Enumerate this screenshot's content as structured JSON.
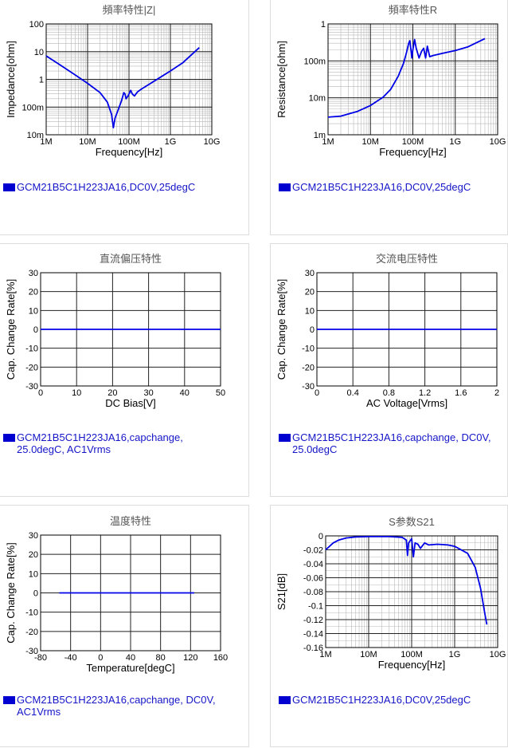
{
  "legend_color": "#0000d0",
  "line_color": "#0000e6",
  "chart_data": [
    {
      "id": "impedance",
      "type": "line",
      "title": "頻率特性|Z|",
      "xlabel": "Frequency[Hz]",
      "ylabel": "Impedance[ohm]",
      "xscale": "log",
      "yscale": "log",
      "xlim": [
        1000000,
        10000000000
      ],
      "ylim": [
        0.01,
        100
      ],
      "xticks": [
        1000000,
        10000000,
        100000000,
        1000000000,
        10000000000
      ],
      "xticklabels": [
        "1M",
        "10M",
        "100M",
        "1G",
        "10G"
      ],
      "yticks": [
        0.01,
        0.1,
        1,
        10,
        100
      ],
      "yticklabels": [
        "10m",
        "100m",
        "1",
        "10",
        "100"
      ],
      "grid": true,
      "legend": "GCM21B5C1H223JA16,DC0V,25degC",
      "x": [
        1000000,
        2000000,
        5000000,
        10000000,
        20000000,
        30000000,
        38000000,
        42000000,
        46000000,
        55000000,
        65000000,
        75000000,
        80000000,
        85000000,
        95000000,
        110000000,
        120000000,
        135000000,
        160000000,
        200000000,
        300000000,
        500000000,
        1000000000,
        2000000000,
        5000000000
      ],
      "y": [
        7,
        3.6,
        1.45,
        0.72,
        0.33,
        0.15,
        0.055,
        0.018,
        0.04,
        0.08,
        0.16,
        0.33,
        0.3,
        0.2,
        0.25,
        0.4,
        0.3,
        0.25,
        0.35,
        0.45,
        0.65,
        1.05,
        2.0,
        4.0,
        14
      ]
    },
    {
      "id": "resistance",
      "type": "line",
      "title": "頻率特性R",
      "xlabel": "Frequency[Hz]",
      "ylabel": "Resistance[ohm]",
      "xscale": "log",
      "yscale": "log",
      "xlim": [
        1000000,
        10000000000
      ],
      "ylim": [
        0.001,
        1
      ],
      "xticks": [
        1000000,
        10000000,
        100000000,
        1000000000,
        10000000000
      ],
      "xticklabels": [
        "1M",
        "10M",
        "100M",
        "1G",
        "10G"
      ],
      "yticks": [
        0.001,
        0.01,
        0.1,
        1
      ],
      "yticklabels": [
        "1m",
        "10m",
        "100m",
        "1"
      ],
      "grid": true,
      "legend": "GCM21B5C1H223JA16,DC0V,25degC",
      "x": [
        1000000,
        2000000,
        5000000,
        10000000,
        20000000,
        30000000,
        45000000,
        60000000,
        70000000,
        80000000,
        85000000,
        90000000,
        95000000,
        100000000,
        110000000,
        120000000,
        140000000,
        160000000,
        180000000,
        200000000,
        220000000,
        250000000,
        300000000,
        500000000,
        1000000000,
        2000000000,
        5000000000
      ],
      "y": [
        0.003,
        0.0032,
        0.0043,
        0.0062,
        0.0105,
        0.017,
        0.038,
        0.085,
        0.16,
        0.3,
        0.35,
        0.2,
        0.12,
        0.2,
        0.38,
        0.22,
        0.12,
        0.18,
        0.22,
        0.12,
        0.25,
        0.13,
        0.14,
        0.16,
        0.19,
        0.24,
        0.4
      ]
    },
    {
      "id": "dcbias",
      "type": "line",
      "title": "直流偏压特性",
      "xlabel": "DC Bias[V]",
      "ylabel": "Cap. Change Rate[%]",
      "xscale": "linear",
      "yscale": "linear",
      "xlim": [
        0,
        50
      ],
      "ylim": [
        -30,
        30
      ],
      "xticks": [
        0,
        10,
        20,
        30,
        40,
        50
      ],
      "xticklabels": [
        "0",
        "10",
        "20",
        "30",
        "40",
        "50"
      ],
      "yticks": [
        -30,
        -20,
        -10,
        0,
        10,
        20,
        30
      ],
      "yticklabels": [
        "-30",
        "-20",
        "-10",
        "0",
        "10",
        "20",
        "30"
      ],
      "grid": true,
      "legend": "GCM21B5C1H223JA16,capchange, 25.0degC, AC1Vrms",
      "x": [
        0,
        50
      ],
      "y": [
        0,
        0
      ]
    },
    {
      "id": "acvoltage",
      "type": "line",
      "title": "交流电压特性",
      "xlabel": "AC Voltage[Vrms]",
      "ylabel": "Cap. Change Rate[%]",
      "xscale": "linear",
      "yscale": "linear",
      "xlim": [
        0,
        2
      ],
      "ylim": [
        -30,
        30
      ],
      "xticks": [
        0,
        0.4,
        0.8,
        1.2,
        1.6,
        2
      ],
      "xticklabels": [
        "0",
        "0.4",
        "0.8",
        "1.2",
        "1.6",
        "2"
      ],
      "yticks": [
        -30,
        -20,
        -10,
        0,
        10,
        20,
        30
      ],
      "yticklabels": [
        "-30",
        "-20",
        "-10",
        "0",
        "10",
        "20",
        "30"
      ],
      "grid": true,
      "legend": "GCM21B5C1H223JA16,capchange, DC0V, 25.0degC",
      "x": [
        0,
        2
      ],
      "y": [
        0,
        0
      ]
    },
    {
      "id": "temperature",
      "type": "line",
      "title": "温度特性",
      "xlabel": "Temperature[degC]",
      "ylabel": "Cap. Change Rate[%]",
      "xscale": "linear",
      "yscale": "linear",
      "xlim": [
        -80,
        160
      ],
      "ylim": [
        -30,
        30
      ],
      "xticks": [
        -80,
        -40,
        0,
        40,
        80,
        120,
        160
      ],
      "xticklabels": [
        "-80",
        "-40",
        "0",
        "40",
        "80",
        "120",
        "160"
      ],
      "yticks": [
        -30,
        -20,
        -10,
        0,
        10,
        20,
        30
      ],
      "yticklabels": [
        "-30",
        "-20",
        "-10",
        "0",
        "10",
        "20",
        "30"
      ],
      "grid": true,
      "legend": "GCM21B5C1H223JA16,capchange, DC0V, AC1Vrms",
      "x": [
        -55,
        125
      ],
      "y": [
        0,
        0
      ]
    },
    {
      "id": "s21",
      "type": "line",
      "title": "S参数S21",
      "xlabel": "Frequency[Hz]",
      "ylabel": "S21[dB]",
      "xscale": "log",
      "yscale": "linear",
      "xlim": [
        1000000,
        10000000000
      ],
      "ylim": [
        -0.16,
        0
      ],
      "xticks": [
        1000000,
        10000000,
        100000000,
        1000000000,
        10000000000
      ],
      "xticklabels": [
        "1M",
        "10M",
        "100M",
        "1G",
        "10G"
      ],
      "yticks": [
        0,
        -0.02,
        -0.04,
        -0.06,
        -0.08,
        -0.1,
        -0.12,
        -0.14,
        -0.16
      ],
      "yticklabels": [
        "0",
        "-0.02",
        "-0.04",
        "-0.06",
        "-0.08",
        "-0.1",
        "-0.12",
        "-0.14",
        "-0.16"
      ],
      "grid": true,
      "legend": "GCM21B5C1H223JA16,DC0V,25degC",
      "x": [
        1000000,
        1500000,
        2000000,
        3000000,
        5000000,
        10000000,
        30000000,
        60000000,
        75000000,
        80000000,
        85000000,
        90000000,
        100000000,
        110000000,
        120000000,
        140000000,
        160000000,
        200000000,
        250000000,
        400000000,
        700000000,
        1000000000,
        2000000000,
        3000000000,
        4000000000,
        5000000000,
        5600000000
      ],
      "y": [
        -0.02,
        -0.01,
        -0.006,
        -0.003,
        -0.0015,
        -0.001,
        -0.001,
        -0.002,
        -0.006,
        -0.028,
        -0.01,
        -0.008,
        -0.004,
        -0.03,
        -0.01,
        -0.012,
        -0.018,
        -0.01,
        -0.013,
        -0.012,
        -0.013,
        -0.015,
        -0.025,
        -0.045,
        -0.075,
        -0.11,
        -0.127
      ]
    }
  ]
}
